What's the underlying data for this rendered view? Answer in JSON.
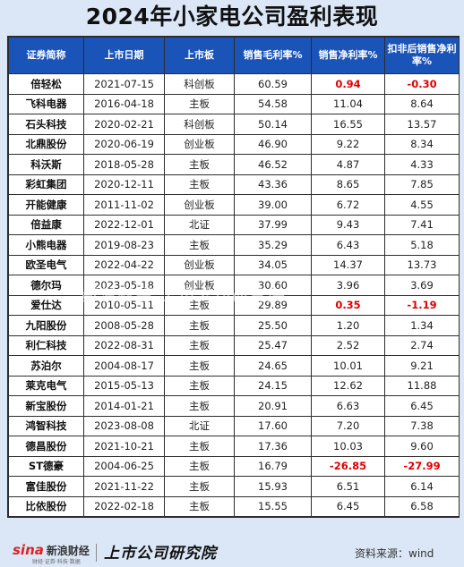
{
  "title": "2024年小家电公司盈利表现",
  "table": {
    "headers": [
      "证券简称",
      "上市日期",
      "上市板",
      "销售毛利率%",
      "销售净利率%",
      "扣非后销售净利率%"
    ],
    "rows": [
      [
        "倍轻松",
        "2021-07-15",
        "科创板",
        "60.59",
        "0.94",
        "-0.30"
      ],
      [
        "飞科电器",
        "2016-04-18",
        "主板",
        "54.58",
        "11.04",
        "8.64"
      ],
      [
        "石头科技",
        "2020-02-21",
        "科创板",
        "50.14",
        "16.55",
        "13.57"
      ],
      [
        "北鼎股份",
        "2020-06-19",
        "创业板",
        "46.90",
        "9.22",
        "8.34"
      ],
      [
        "科沃斯",
        "2018-05-28",
        "主板",
        "46.52",
        "4.87",
        "4.33"
      ],
      [
        "彩虹集团",
        "2020-12-11",
        "主板",
        "43.36",
        "8.65",
        "7.85"
      ],
      [
        "开能健康",
        "2011-11-02",
        "创业板",
        "39.00",
        "6.72",
        "4.55"
      ],
      [
        "倍益康",
        "2022-12-01",
        "北证",
        "37.99",
        "9.43",
        "7.41"
      ],
      [
        "小熊电器",
        "2019-08-23",
        "主板",
        "35.29",
        "6.43",
        "5.18"
      ],
      [
        "欧圣电气",
        "2022-04-22",
        "创业板",
        "34.05",
        "14.37",
        "13.73"
      ],
      [
        "德尔玛",
        "2023-05-18",
        "创业板",
        "30.60",
        "3.96",
        "3.69"
      ],
      [
        "爱仕达",
        "2010-05-11",
        "主板",
        "29.89",
        "0.35",
        "-1.19"
      ],
      [
        "九阳股份",
        "2008-05-28",
        "主板",
        "25.50",
        "1.20",
        "1.34"
      ],
      [
        "利仁科技",
        "2022-08-31",
        "主板",
        "25.47",
        "2.52",
        "2.74"
      ],
      [
        "苏泊尔",
        "2004-08-17",
        "主板",
        "24.65",
        "10.01",
        "9.21"
      ],
      [
        "莱克电气",
        "2015-05-13",
        "主板",
        "24.15",
        "12.62",
        "11.88"
      ],
      [
        "新宝股份",
        "2014-01-21",
        "主板",
        "20.91",
        "6.63",
        "6.45"
      ],
      [
        "鸿智科技",
        "2023-08-08",
        "北证",
        "17.60",
        "7.20",
        "7.38"
      ],
      [
        "德昌股份",
        "2021-10-21",
        "主板",
        "17.36",
        "10.03",
        "9.60"
      ],
      [
        "ST德豪",
        "2004-06-25",
        "主板",
        "16.79",
        "-26.85",
        "-27.99"
      ],
      [
        "富佳股份",
        "2021-11-22",
        "主板",
        "15.93",
        "6.51",
        "6.14"
      ],
      [
        "比依股份",
        "2022-02-18",
        "主板",
        "15.55",
        "6.45",
        "6.58"
      ]
    ],
    "highlight_color": "#e20000",
    "header_bg": "#1a54b8"
  },
  "watermark": "新浪财经 上市公司研究院",
  "footer": {
    "sina_logo": "sina",
    "sina_text": "新浪财经",
    "sina_sub": "财经·证券·科技·数据",
    "institute_logo": "上市公司研究院",
    "source": "资料来源：wind"
  }
}
